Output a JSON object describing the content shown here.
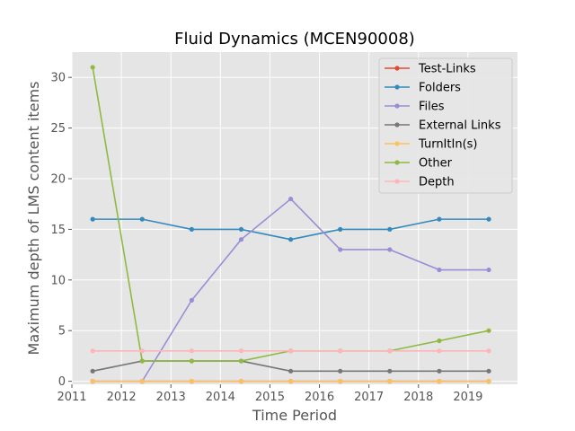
{
  "chart_data": {
    "type": "line",
    "title": "Fluid Dynamics (MCEN90008)",
    "xlabel": "Time Period",
    "ylabel": "Maximum depth of LMS content items",
    "xlim": [
      2011,
      2020
    ],
    "ylim": [
      -0.3,
      32.5
    ],
    "xticks": [
      2011,
      2012,
      2013,
      2014,
      2015,
      2016,
      2017,
      2018,
      2019
    ],
    "yticks": [
      0,
      5,
      10,
      15,
      20,
      25,
      30
    ],
    "grid": true,
    "legend_position": "top-right",
    "x": [
      2011.42,
      2012.42,
      2013.42,
      2014.42,
      2015.42,
      2016.42,
      2017.42,
      2018.42,
      2019.42
    ],
    "series": [
      {
        "name": "Test-Links",
        "color": "#e24a33",
        "values": [
          0,
          0,
          0,
          0,
          0,
          0,
          0,
          0,
          0
        ]
      },
      {
        "name": "Folders",
        "color": "#348abd",
        "values": [
          16,
          16,
          15,
          15,
          14,
          15,
          15,
          16,
          16
        ]
      },
      {
        "name": "Files",
        "color": "#988ed5",
        "values": [
          null,
          0,
          8,
          14,
          18,
          13,
          13,
          11,
          11
        ]
      },
      {
        "name": "External Links",
        "color": "#777777",
        "values": [
          1,
          2,
          2,
          2,
          1,
          1,
          1,
          1,
          1
        ]
      },
      {
        "name": "TurnItIn(s)",
        "color": "#fbc15e",
        "values": [
          0,
          0,
          0,
          0,
          0,
          0,
          0,
          0,
          0
        ]
      },
      {
        "name": "Other",
        "color": "#8eba42",
        "values": [
          31,
          2,
          2,
          2,
          3,
          3,
          3,
          4,
          5
        ]
      },
      {
        "name": "Depth",
        "color": "#ffb5b8",
        "values": [
          3,
          3,
          3,
          3,
          3,
          3,
          3,
          3,
          3
        ]
      }
    ]
  }
}
